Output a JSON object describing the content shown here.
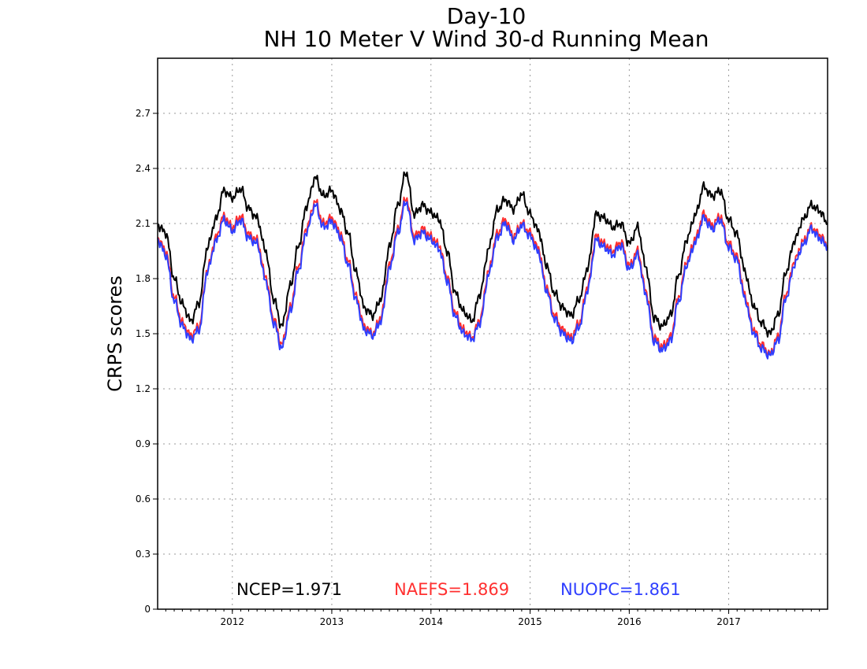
{
  "chart_data": {
    "type": "line",
    "title": "Day-10",
    "subtitle": "NH 10 Meter V Wind 30-d Running Mean",
    "xlabel": "",
    "ylabel": "CRPS scores",
    "xlim": [
      "2011-04-01",
      "2017-12-31"
    ],
    "ylim": [
      0,
      3.0
    ],
    "yticks": [
      0,
      0.3,
      0.6,
      0.9,
      1.2,
      1.5,
      1.8,
      2.1,
      2.4,
      2.7
    ],
    "ytick_labels": [
      "0",
      "0.3",
      "0.6",
      "0.9",
      "1.2",
      "1.5",
      "1.8",
      "2.1",
      "2.4",
      "2.7"
    ],
    "xticks": [
      "2012-01-01",
      "2013-01-01",
      "2014-01-01",
      "2015-01-01",
      "2016-01-01",
      "2017-01-01"
    ],
    "xtick_labels": [
      "2012",
      "2013",
      "2014",
      "2015",
      "2016",
      "2017"
    ],
    "grid": true,
    "legend_position": "bottom",
    "series": [
      {
        "name": "NCEP",
        "label": "NCEP=1.971",
        "color": "#000000",
        "x": [
          "2011-04-01",
          "2011-05-01",
          "2011-06-01",
          "2011-07-01",
          "2011-08-01",
          "2011-09-01",
          "2011-10-01",
          "2011-11-01",
          "2011-12-01",
          "2012-01-01",
          "2012-02-01",
          "2012-03-01",
          "2012-04-01",
          "2012-05-01",
          "2012-06-01",
          "2012-07-01",
          "2012-08-01",
          "2012-09-01",
          "2012-10-01",
          "2012-11-01",
          "2012-12-01",
          "2013-01-01",
          "2013-02-01",
          "2013-03-01",
          "2013-04-01",
          "2013-05-01",
          "2013-06-01",
          "2013-07-01",
          "2013-08-01",
          "2013-09-01",
          "2013-10-01",
          "2013-11-01",
          "2013-12-01",
          "2014-01-01",
          "2014-02-01",
          "2014-03-01",
          "2014-04-01",
          "2014-05-01",
          "2014-06-01",
          "2014-07-01",
          "2014-08-01",
          "2014-09-01",
          "2014-10-01",
          "2014-11-01",
          "2014-12-01",
          "2015-01-01",
          "2015-02-01",
          "2015-03-01",
          "2015-04-01",
          "2015-05-01",
          "2015-06-01",
          "2015-07-01",
          "2015-08-01",
          "2015-09-01",
          "2015-10-01",
          "2015-11-01",
          "2015-12-01",
          "2016-01-01",
          "2016-02-01",
          "2016-03-01",
          "2016-04-01",
          "2016-05-01",
          "2016-06-01",
          "2016-07-01",
          "2016-08-01",
          "2016-09-01",
          "2016-10-01",
          "2016-11-01",
          "2016-12-01",
          "2017-01-01",
          "2017-02-01",
          "2017-03-01",
          "2017-04-01",
          "2017-05-01",
          "2017-06-01",
          "2017-07-01",
          "2017-08-01",
          "2017-09-01",
          "2017-10-01",
          "2017-11-01",
          "2017-12-01",
          "2017-12-31"
        ],
        "values": [
          2.09,
          2.05,
          1.8,
          1.66,
          1.57,
          1.67,
          1.97,
          2.12,
          2.28,
          2.24,
          2.29,
          2.18,
          2.13,
          1.96,
          1.69,
          1.54,
          1.76,
          1.98,
          2.2,
          2.35,
          2.25,
          2.28,
          2.18,
          2.05,
          1.83,
          1.64,
          1.6,
          1.69,
          1.97,
          2.2,
          2.38,
          2.15,
          2.2,
          2.16,
          2.12,
          1.95,
          1.72,
          1.62,
          1.57,
          1.72,
          1.96,
          2.17,
          2.23,
          2.18,
          2.26,
          2.15,
          2.06,
          1.88,
          1.72,
          1.64,
          1.6,
          1.69,
          1.86,
          2.15,
          2.13,
          2.08,
          2.1,
          1.99,
          2.08,
          1.87,
          1.59,
          1.54,
          1.6,
          1.82,
          2.02,
          2.15,
          2.3,
          2.25,
          2.28,
          2.12,
          2.04,
          1.84,
          1.66,
          1.56,
          1.5,
          1.6,
          1.84,
          2.01,
          2.12,
          2.2,
          2.17,
          2.1
        ]
      },
      {
        "name": "NAEFS",
        "label": "NAEFS=1.869",
        "color": "#ff3030",
        "x": [
          "2011-04-01",
          "2011-05-01",
          "2011-06-01",
          "2011-07-01",
          "2011-08-01",
          "2011-09-01",
          "2011-10-01",
          "2011-11-01",
          "2011-12-01",
          "2012-01-01",
          "2012-02-01",
          "2012-03-01",
          "2012-04-01",
          "2012-05-01",
          "2012-06-01",
          "2012-07-01",
          "2012-08-01",
          "2012-09-01",
          "2012-10-01",
          "2012-11-01",
          "2012-12-01",
          "2013-01-01",
          "2013-02-01",
          "2013-03-01",
          "2013-04-01",
          "2013-05-01",
          "2013-06-01",
          "2013-07-01",
          "2013-08-01",
          "2013-09-01",
          "2013-10-01",
          "2013-11-01",
          "2013-12-01",
          "2014-01-01",
          "2014-02-01",
          "2014-03-01",
          "2014-04-01",
          "2014-05-01",
          "2014-06-01",
          "2014-07-01",
          "2014-08-01",
          "2014-09-01",
          "2014-10-01",
          "2014-11-01",
          "2014-12-01",
          "2015-01-01",
          "2015-02-01",
          "2015-03-01",
          "2015-04-01",
          "2015-05-01",
          "2015-06-01",
          "2015-07-01",
          "2015-08-01",
          "2015-09-01",
          "2015-10-01",
          "2015-11-01",
          "2015-12-01",
          "2016-01-01",
          "2016-02-01",
          "2016-03-01",
          "2016-04-01",
          "2016-05-01",
          "2016-06-01",
          "2016-07-01",
          "2016-08-01",
          "2016-09-01",
          "2016-10-01",
          "2016-11-01",
          "2016-12-01",
          "2017-01-01",
          "2017-02-01",
          "2017-03-01",
          "2017-04-01",
          "2017-05-01",
          "2017-06-01",
          "2017-07-01",
          "2017-08-01",
          "2017-09-01",
          "2017-10-01",
          "2017-11-01",
          "2017-12-01",
          "2017-12-31"
        ],
        "values": [
          2.02,
          1.95,
          1.7,
          1.56,
          1.49,
          1.54,
          1.85,
          2.02,
          2.14,
          2.08,
          2.14,
          2.04,
          2.01,
          1.82,
          1.58,
          1.44,
          1.64,
          1.87,
          2.08,
          2.22,
          2.1,
          2.13,
          2.05,
          1.9,
          1.7,
          1.54,
          1.5,
          1.59,
          1.87,
          2.07,
          2.24,
          2.03,
          2.07,
          2.03,
          1.98,
          1.81,
          1.61,
          1.52,
          1.48,
          1.58,
          1.84,
          2.04,
          2.12,
          2.03,
          2.1,
          2.05,
          1.96,
          1.76,
          1.6,
          1.52,
          1.48,
          1.56,
          1.76,
          2.03,
          1.99,
          1.95,
          2.0,
          1.87,
          1.95,
          1.74,
          1.48,
          1.43,
          1.48,
          1.7,
          1.9,
          2.02,
          2.15,
          2.09,
          2.14,
          1.99,
          1.92,
          1.71,
          1.53,
          1.44,
          1.39,
          1.48,
          1.72,
          1.9,
          2.0,
          2.08,
          2.04,
          1.98
        ]
      },
      {
        "name": "NUOPC",
        "label": "NUOPC=1.861",
        "color": "#2f3fff",
        "x": [
          "2011-04-01",
          "2011-05-01",
          "2011-06-01",
          "2011-07-01",
          "2011-08-01",
          "2011-09-01",
          "2011-10-01",
          "2011-11-01",
          "2011-12-01",
          "2012-01-01",
          "2012-02-01",
          "2012-03-01",
          "2012-04-01",
          "2012-05-01",
          "2012-06-01",
          "2012-07-01",
          "2012-08-01",
          "2012-09-01",
          "2012-10-01",
          "2012-11-01",
          "2012-12-01",
          "2013-01-01",
          "2013-02-01",
          "2013-03-01",
          "2013-04-01",
          "2013-05-01",
          "2013-06-01",
          "2013-07-01",
          "2013-08-01",
          "2013-09-01",
          "2013-10-01",
          "2013-11-01",
          "2013-12-01",
          "2014-01-01",
          "2014-02-01",
          "2014-03-01",
          "2014-04-01",
          "2014-05-01",
          "2014-06-01",
          "2014-07-01",
          "2014-08-01",
          "2014-09-01",
          "2014-10-01",
          "2014-11-01",
          "2014-12-01",
          "2015-01-01",
          "2015-02-01",
          "2015-03-01",
          "2015-04-01",
          "2015-05-01",
          "2015-06-01",
          "2015-07-01",
          "2015-08-01",
          "2015-09-01",
          "2015-10-01",
          "2015-11-01",
          "2015-12-01",
          "2016-01-01",
          "2016-02-01",
          "2016-03-01",
          "2016-04-01",
          "2016-05-01",
          "2016-06-01",
          "2016-07-01",
          "2016-08-01",
          "2016-09-01",
          "2016-10-01",
          "2016-11-01",
          "2016-12-01",
          "2017-01-01",
          "2017-02-01",
          "2017-03-01",
          "2017-04-01",
          "2017-05-01",
          "2017-06-01",
          "2017-07-01",
          "2017-08-01",
          "2017-09-01",
          "2017-10-01",
          "2017-11-01",
          "2017-12-01",
          "2017-12-31"
        ],
        "values": [
          2.01,
          1.93,
          1.68,
          1.54,
          1.47,
          1.52,
          1.84,
          2.0,
          2.12,
          2.06,
          2.12,
          2.02,
          1.99,
          1.8,
          1.56,
          1.42,
          1.62,
          1.85,
          2.06,
          2.2,
          2.08,
          2.11,
          2.03,
          1.88,
          1.68,
          1.52,
          1.49,
          1.57,
          1.85,
          2.05,
          2.22,
          2.01,
          2.05,
          2.01,
          1.96,
          1.79,
          1.59,
          1.5,
          1.47,
          1.56,
          1.82,
          2.02,
          2.1,
          2.01,
          2.09,
          2.03,
          1.94,
          1.74,
          1.58,
          1.5,
          1.46,
          1.54,
          1.74,
          2.01,
          1.97,
          1.93,
          1.98,
          1.85,
          1.93,
          1.72,
          1.46,
          1.41,
          1.46,
          1.68,
          1.88,
          2.0,
          2.13,
          2.07,
          2.12,
          1.97,
          1.9,
          1.69,
          1.51,
          1.42,
          1.38,
          1.46,
          1.7,
          1.88,
          1.98,
          2.07,
          2.02,
          1.97
        ]
      }
    ]
  }
}
